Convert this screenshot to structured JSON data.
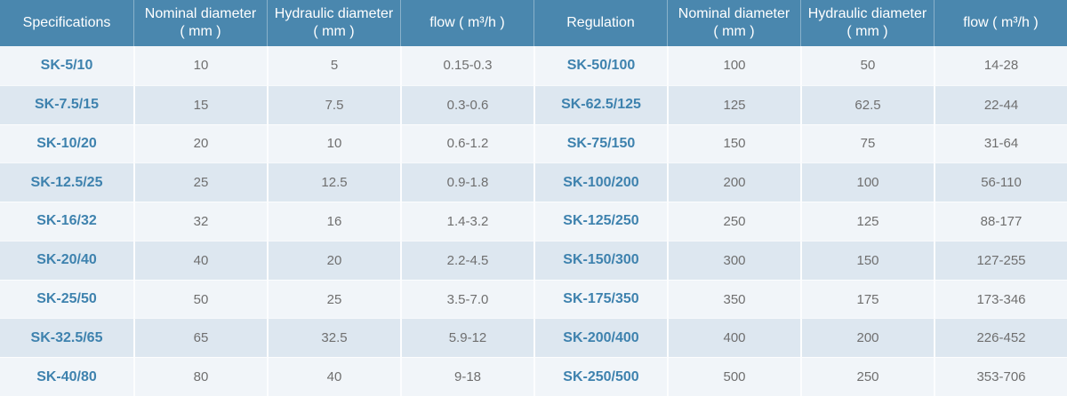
{
  "colors": {
    "header_bg": "#4a87ae",
    "header_text": "#ffffff",
    "header_divider": "rgba(255,255,255,0.35)",
    "row_light": "#f1f5f9",
    "row_dark": "#dde7f0",
    "row_separator": "rgba(255,255,255,0.75)",
    "column_divider": "#fcfdfe",
    "model_text": "#3e82ae",
    "value_text": "#6f6f6f"
  },
  "tables": [
    {
      "name": "specifications",
      "headers": [
        [
          "Specifications"
        ],
        [
          "Nominal diameter",
          "( mm )"
        ],
        [
          "Hydraulic diameter",
          "( mm )"
        ],
        [
          "flow ( m³/h )"
        ]
      ],
      "rows": [
        [
          "SK-5/10",
          "10",
          "5",
          "0.15-0.3"
        ],
        [
          "SK-7.5/15",
          "15",
          "7.5",
          "0.3-0.6"
        ],
        [
          "SK-10/20",
          "20",
          "10",
          "0.6-1.2"
        ],
        [
          "SK-12.5/25",
          "25",
          "12.5",
          "0.9-1.8"
        ],
        [
          "SK-16/32",
          "32",
          "16",
          "1.4-3.2"
        ],
        [
          "SK-20/40",
          "40",
          "20",
          "2.2-4.5"
        ],
        [
          "SK-25/50",
          "50",
          "25",
          "3.5-7.0"
        ],
        [
          "SK-32.5/65",
          "65",
          "32.5",
          "5.9-12"
        ],
        [
          "SK-40/80",
          "80",
          "40",
          "9-18"
        ]
      ]
    },
    {
      "name": "regulation",
      "headers": [
        [
          "Regulation"
        ],
        [
          "Nominal diameter",
          "( mm )"
        ],
        [
          "Hydraulic diameter",
          "( mm )"
        ],
        [
          "flow ( m³/h )"
        ]
      ],
      "rows": [
        [
          "SK-50/100",
          "100",
          "50",
          "14-28"
        ],
        [
          "SK-62.5/125",
          "125",
          "62.5",
          "22-44"
        ],
        [
          "SK-75/150",
          "150",
          "75",
          "31-64"
        ],
        [
          "SK-100/200",
          "200",
          "100",
          "56-110"
        ],
        [
          "SK-125/250",
          "250",
          "125",
          "88-177"
        ],
        [
          "SK-150/300",
          "300",
          "150",
          "127-255"
        ],
        [
          "SK-175/350",
          "350",
          "175",
          "173-346"
        ],
        [
          "SK-200/400",
          "400",
          "200",
          "226-452"
        ],
        [
          "SK-250/500",
          "500",
          "250",
          "353-706"
        ]
      ]
    }
  ]
}
